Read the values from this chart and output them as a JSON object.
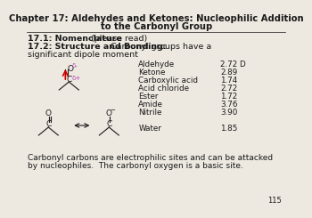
{
  "title_line1": "Chapter 17: Aldehydes and Ketones: Nucleophilic Addition",
  "title_line2": "to the Carbonyl Group",
  "section1_bold": "17.1: Nomenclature",
  "section1_rest": " (please read)",
  "section2_bold": "17.2: Structure and Bonding:",
  "section2_rest": " Carbonyl groups have a",
  "section2_line2": "significant dipole moment",
  "table_compounds": [
    "Aldehyde",
    "Ketone",
    "Carboxylic acid",
    "Acid chloride",
    "Ester",
    "Amide",
    "Nitrile",
    "",
    "Water"
  ],
  "table_values": [
    "2.72 D",
    "2.89",
    "1.74",
    "2.72",
    "1.72",
    "3.76",
    "3.90",
    "",
    "1.85"
  ],
  "footer_line1": "Carbonyl carbons are electrophilic sites and can be attacked",
  "footer_line2": "by nucleophiles.  The carbonyl oxygen is a basic site.",
  "page_number": "115",
  "bg_color": "#ede8e0",
  "text_color": "#1a1a1a",
  "magenta_color": "#bb44bb",
  "red_color": "#cc0000",
  "title_fontsize": 7.2,
  "body_fontsize": 6.8,
  "table_fontsize": 6.3,
  "footer_fontsize": 6.5,
  "page_fontsize": 6.0
}
